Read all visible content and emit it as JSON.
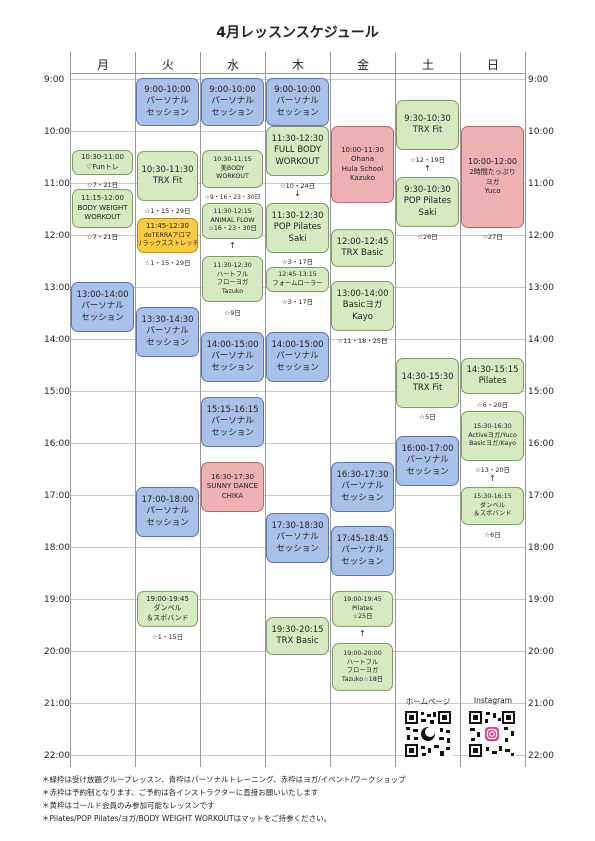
{
  "title": "4月レッスンスケジュール",
  "days": [
    "月",
    "火",
    "水",
    "木",
    "金",
    "土",
    "日"
  ],
  "times": [
    "9:00",
    "10:00",
    "11:00",
    "12:00",
    "13:00",
    "14:00",
    "15:00",
    "16:00",
    "17:00",
    "18:00",
    "19:00",
    "20:00",
    "21:00",
    "22:00"
  ],
  "colors": {
    "group": "#d7e9c0",
    "personal": "#a9c0e8",
    "yoga_event": "#eeb0b2",
    "gold": "#fccb45"
  },
  "events": {
    "mon1": [
      "10:30-11:00",
      "♡Funトレ"
    ],
    "mon1_note": "☆7・21日",
    "mon2": [
      "11:15-12:00",
      "BODY WEIGHT",
      "WORKOUT"
    ],
    "mon2_note": "☆7・21日",
    "mon3": [
      "13:00-14:00",
      "パーソナル",
      "セッション"
    ],
    "tue1": [
      "9:00-10:00",
      "パーソナル",
      "セッション"
    ],
    "tue2": [
      "10:30-11:30",
      "TRX Fit"
    ],
    "tue2_note": "☆1・15・29日",
    "tue3": [
      "11:45-12:30",
      "doTERRAアロマ",
      "リラックスストレッチ"
    ],
    "tue3_note": "☆1・15・29日",
    "tue4": [
      "13:30-14:30",
      "パーソナル",
      "セッション"
    ],
    "tue5": [
      "17:00-18:00",
      "パーソナル",
      "セッション"
    ],
    "tue6": [
      "19:00-19:45",
      "ダンベル",
      "＆スポバンド"
    ],
    "tue6_note": "☆1・15日",
    "wed1": [
      "9:00-10:00",
      "パーソナル",
      "セッション"
    ],
    "wed2": [
      "10:30-11:15",
      "美BODY",
      "WORKOUT"
    ],
    "wed2_note": "☆9・16・23・30日",
    "wed3": [
      "11:30-12:15",
      "ANIMAL FLOW",
      "☆16・23・30日"
    ],
    "wed4": [
      "11:30-12:30",
      "ハートフル",
      "フローヨガ",
      "Tazuko"
    ],
    "wed4_note": "☆9日",
    "wed5": [
      "14:00-15:00",
      "パーソナル",
      "セッション"
    ],
    "wed6": [
      "15:15-16:15",
      "パーソナル",
      "セッション"
    ],
    "wed7": [
      "16:30-17:30",
      "SUNNY DANCE",
      "CHIKA"
    ],
    "thu1": [
      "9:00-10:00",
      "パーソナル",
      "セッション"
    ],
    "thu2": [
      "11:30-12:30",
      "FULL BODY",
      "WORKOUT"
    ],
    "thu2_note": "☆10・24日",
    "thu3": [
      "11:30-12:30",
      "POP Pilates",
      "Saki"
    ],
    "thu3_note": "☆3・17日",
    "thu4": [
      "12:45-13:15",
      "フォームローラー"
    ],
    "thu4_note": "☆3・17日",
    "thu5": [
      "14:00-15:00",
      "パーソナル",
      "セッション"
    ],
    "thu6": [
      "17:30-18:30",
      "パーソナル",
      "セッション"
    ],
    "thu7": [
      "19:30-20:15",
      "TRX Basic"
    ],
    "fri1": [
      "10:00-11:30",
      "Ohana",
      "Hula School",
      "Kazuko"
    ],
    "fri2": [
      "12:00-12:45",
      "TRX Basic"
    ],
    "fri3": [
      "13:00-14:00",
      "Basicヨガ",
      "Kayo"
    ],
    "fri3_note": "☆11・18・25日",
    "fri4": [
      "16:30-17:30",
      "パーソナル",
      "セッション"
    ],
    "fri5": [
      "17:45-18:45",
      "パーソナル",
      "セッション"
    ],
    "fri6": [
      "19:00-19:45",
      "Pilates",
      "☆25日"
    ],
    "fri7": [
      "19:00-20:00",
      "ハートフル",
      "フローヨガ",
      "Tazuko☆18日"
    ],
    "sat1": [
      "9:30-10:30",
      "TRX Fit"
    ],
    "sat1_note": "☆12・19日",
    "sat2": [
      "9:30-10:30",
      "POP Pilates",
      "Saki"
    ],
    "sat2_note": "☆26日",
    "sat3": [
      "14:30-15:30",
      "TRX Fit"
    ],
    "sat3_note": "☆5日",
    "sat4": [
      "16:00-17:00",
      "パーソナル",
      "セッション"
    ],
    "sun1": [
      "10:00-12:00",
      "2時間たっぷり",
      "ヨガ",
      "Yuco"
    ],
    "sun1_note": "☆27日",
    "sun2": [
      "14:30-15:15",
      "Pilates"
    ],
    "sun2_note": "☆6・20日",
    "sun3": [
      "15:30-16:30",
      "Activeヨガ/Yuco",
      "Basicヨガ/Kayo"
    ],
    "sun3_note": "☆13・20日",
    "sun4": [
      "15:30-16:15",
      "ダンベル",
      "＆スポバンド"
    ],
    "sun4_note": "☆6日"
  },
  "arrows": {
    "wed": "↑",
    "thu": "↓",
    "fri": "↑",
    "sat": "↑",
    "sun": "↑"
  },
  "qr": {
    "homepage_label": "ホームページ",
    "instagram_label": "Instagram"
  },
  "footnotes": [
    "＊緑枠は受け放題グループレッスン、青枠はパーソナルトレーニング、赤枠はヨガ/イベント/ワークショップ",
    "＊赤枠は予約制となります、ご予約は各インストラクターに直接お願いいたします",
    "＊黄枠はゴールド会員のみ参加可能なレッスンです",
    "＊Pilates/POP Pilates/ヨガ/BODY WEIGHT WORKOUTはマットをご持参ください。"
  ]
}
